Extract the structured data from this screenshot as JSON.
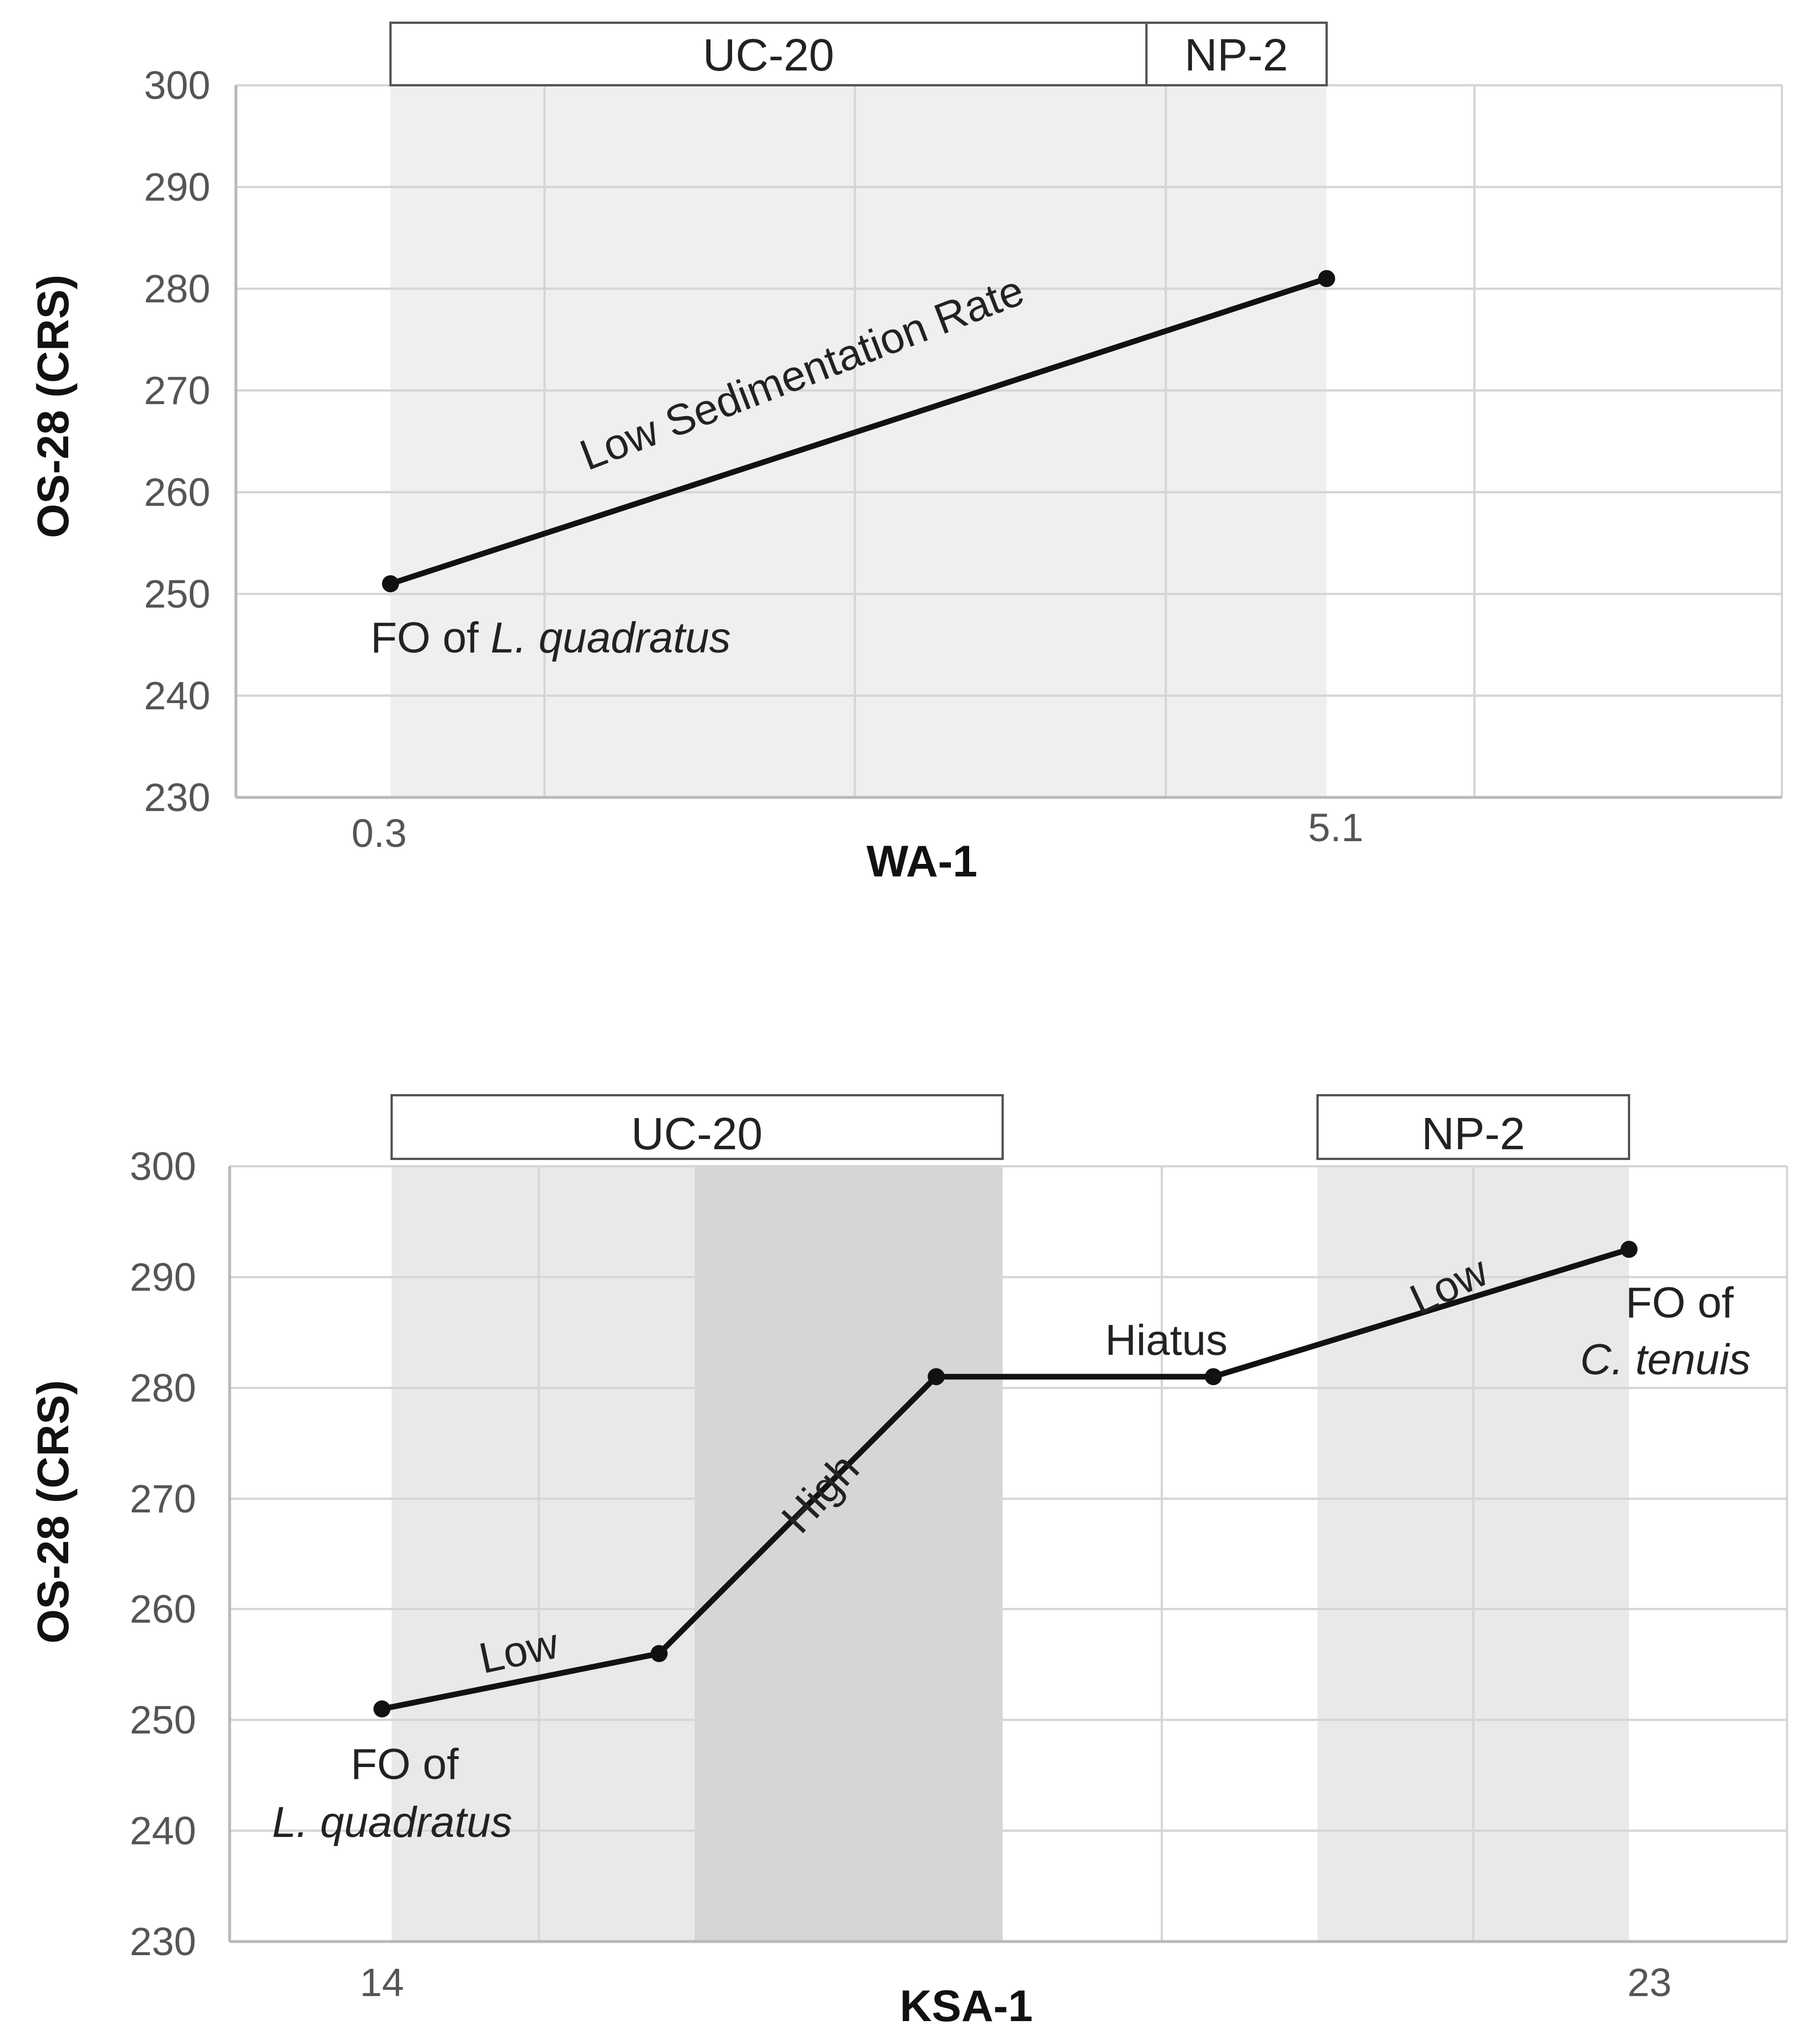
{
  "chart_data": [
    {
      "type": "line",
      "xlabel": "WA-1",
      "ylabel": "OS-28 (CRS)",
      "ylim": [
        230,
        300
      ],
      "yticks": [
        "300",
        "290",
        "280",
        "270",
        "260",
        "250",
        "240",
        "230"
      ],
      "xticks": [
        {
          "x": 0.3,
          "label": "0.3"
        },
        {
          "x": 5.1,
          "label": "5.1"
        }
      ],
      "series": [
        {
          "points": [
            {
              "x": 0.3,
              "y": 251
            },
            {
              "x": 5.1,
              "y": 281
            }
          ]
        }
      ],
      "zones": [
        {
          "label": "UC-20",
          "x_start": 0.3,
          "x_end": 4.2
        },
        {
          "label": "NP-2",
          "x_start": 4.2,
          "x_end": 5.1
        }
      ],
      "annotations": {
        "segment_1": "Low Sedimentation Rate",
        "fo_prefix": "FO of ",
        "fo_species": "L. quadratus"
      },
      "grid": true
    },
    {
      "type": "line",
      "xlabel": "KSA-1",
      "ylabel": "OS-28 (CRS)",
      "ylim": [
        230,
        300
      ],
      "yticks": [
        "300",
        "290",
        "280",
        "270",
        "260",
        "250",
        "240",
        "230"
      ],
      "xticks": [
        {
          "x": 14,
          "label": "14"
        },
        {
          "x": 23,
          "label": "23"
        }
      ],
      "series": [
        {
          "points": [
            {
              "x": 14,
              "y": 251
            },
            {
              "x": 16,
              "y": 256
            },
            {
              "x": 18,
              "y": 281
            },
            {
              "x": 20,
              "y": 281
            },
            {
              "x": 23,
              "y": 292.5
            }
          ]
        }
      ],
      "zones": [
        {
          "label": "UC-20",
          "x_start": 14,
          "x_end": 18
        },
        {
          "label": "NP-2",
          "x_start": 20,
          "x_end": 23
        }
      ],
      "annotations": {
        "segment_1": "Low",
        "segment_2": "High",
        "segment_3": "Hiatus",
        "segment_4": "Low",
        "fo_start_prefix": "FO of",
        "fo_start_species": "L. quadratus",
        "fo_end_prefix": "FO of",
        "fo_end_species": "C. tenuis"
      },
      "grid": true
    }
  ]
}
